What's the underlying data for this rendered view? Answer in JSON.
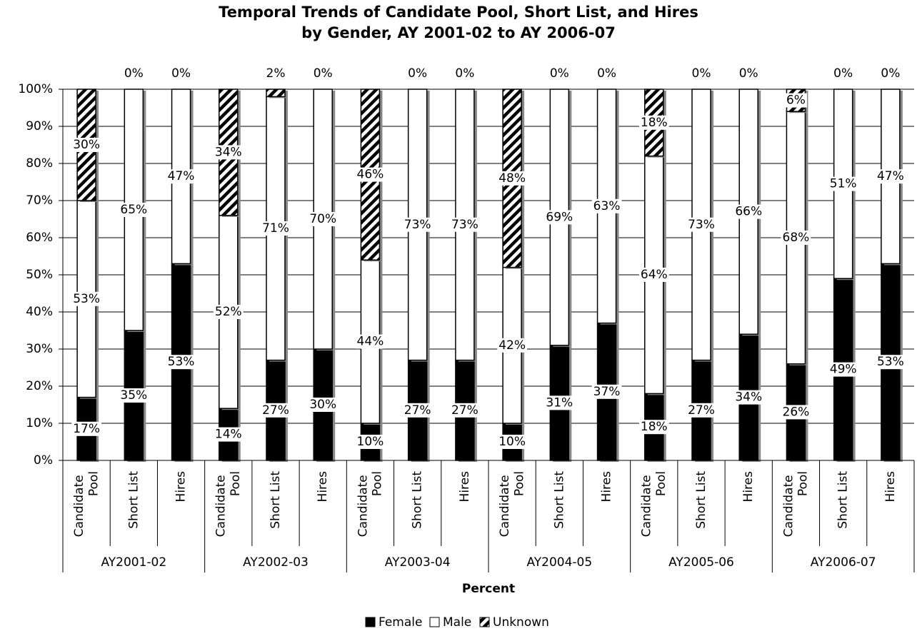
{
  "chart_data": {
    "type": "stacked_bar",
    "title": "Temporal Trends of Candidate Pool, Short List, and Hires",
    "subtitle": "by Gender, AY 2001-02 to AY 2006-07",
    "x_label": "Percent",
    "groups": [
      "AY2001-02",
      "AY2002-03",
      "AY2003-04",
      "AY2004-05",
      "AY2005-06",
      "AY2006-07"
    ],
    "categories": [
      "Candidate Pool",
      "Short List",
      "Hires",
      "Candidate Pool",
      "Short List",
      "Hires",
      "Candidate Pool",
      "Short List",
      "Hires",
      "Candidate Pool",
      "Short List",
      "Hires",
      "Candidate Pool",
      "Short List",
      "Hires",
      "Candidate Pool",
      "Short List",
      "Hires"
    ],
    "series": [
      {
        "name": "Female",
        "color": "#000000",
        "values": [
          17,
          35,
          53,
          14,
          27,
          30,
          10,
          27,
          27,
          10,
          31,
          37,
          18,
          27,
          34,
          26,
          49,
          53
        ],
        "value_labels": [
          "17%",
          "35%",
          "53%",
          "14%",
          "27%",
          "30%",
          "10%",
          "27%",
          "27%",
          "10%",
          "31%",
          "37%",
          "18%",
          "27%",
          "34%",
          "26%",
          "49%",
          "53%"
        ]
      },
      {
        "name": "Male",
        "color": "#ffffff",
        "values": [
          53,
          65,
          47,
          52,
          71,
          70,
          44,
          73,
          73,
          42,
          69,
          63,
          64,
          73,
          66,
          68,
          51,
          47
        ],
        "value_labels": [
          "53%",
          "65%",
          "47%",
          "52%",
          "71%",
          "70%",
          "44%",
          "73%",
          "73%",
          "42%",
          "69%",
          "63%",
          "64%",
          "73%",
          "66%",
          "68%",
          "51%",
          "47%"
        ]
      },
      {
        "name": "Unknown",
        "color": "hatch",
        "values": [
          30,
          0,
          0,
          34,
          2,
          0,
          46,
          0,
          0,
          48,
          0,
          0,
          18,
          0,
          0,
          6,
          0,
          0
        ],
        "value_labels": [
          "30%",
          "0%",
          "0%",
          "34%",
          "2%",
          "0%",
          "46%",
          "0%",
          "0%",
          "48%",
          "0%",
          "0%",
          "18%",
          "0%",
          "0%",
          "6%",
          "0%",
          "0%"
        ]
      }
    ],
    "ylim": [
      0,
      100
    ],
    "yticks": [
      {
        "value": 0,
        "label": "0%"
      },
      {
        "value": 10,
        "label": "10%"
      },
      {
        "value": 20,
        "label": "20%"
      },
      {
        "value": 30,
        "label": "30%"
      },
      {
        "value": 40,
        "label": "40%"
      },
      {
        "value": 50,
        "label": "50%"
      },
      {
        "value": 60,
        "label": "60%"
      },
      {
        "value": 70,
        "label": "70%"
      },
      {
        "value": 80,
        "label": "80%"
      },
      {
        "value": 90,
        "label": "90%"
      },
      {
        "value": 100,
        "label": "100%"
      }
    ],
    "grid": true,
    "legend": "bottom"
  }
}
